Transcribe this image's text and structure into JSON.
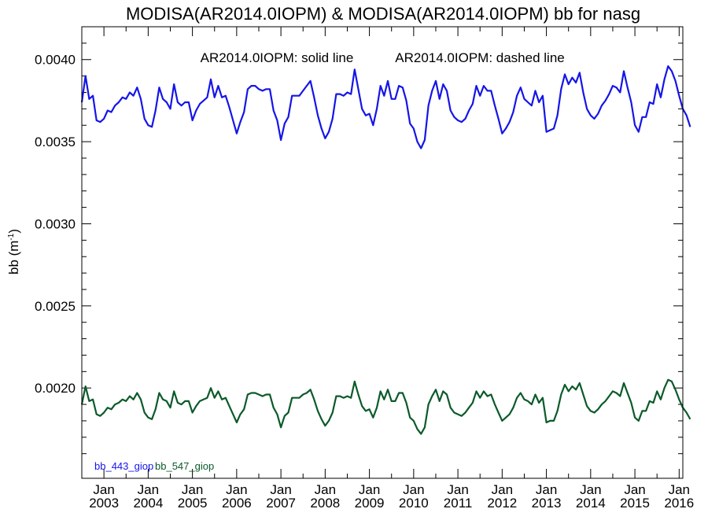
{
  "chart_data": {
    "type": "line",
    "title": "MODISA(AR2014.0IOPM) & MODISA(AR2014.0IOPM)  bb for nasg",
    "annotation_solid": "AR2014.0IOPM: solid line",
    "annotation_dashed": "AR2014.0IOPM: dashed line",
    "ylabel": "bb (m",
    "ylabel_sup": "-1",
    "ylabel_close": ")",
    "xlabel": "",
    "ylim": [
      0.00145,
      0.0042
    ],
    "yticks": [
      "0.0020",
      "0.0025",
      "0.0030",
      "0.0035",
      "0.0040"
    ],
    "xticks": [
      {
        "month": "Jan",
        "year": "2003"
      },
      {
        "month": "Jan",
        "year": "2004"
      },
      {
        "month": "Jan",
        "year": "2005"
      },
      {
        "month": "Jan",
        "year": "2006"
      },
      {
        "month": "Jan",
        "year": "2007"
      },
      {
        "month": "Jan",
        "year": "2008"
      },
      {
        "month": "Jan",
        "year": "2009"
      },
      {
        "month": "Jan",
        "year": "2010"
      },
      {
        "month": "Jan",
        "year": "2011"
      },
      {
        "month": "Jan",
        "year": "2012"
      },
      {
        "month": "Jan",
        "year": "2013"
      },
      {
        "month": "Jan",
        "year": "2014"
      },
      {
        "month": "Jan",
        "year": "2015"
      },
      {
        "month": "Jan",
        "year": "2016"
      }
    ],
    "grid": false,
    "series": [
      {
        "name": "bb_443_giop",
        "color": "#1515e8",
        "start": "2002-07",
        "values": [
          0.00374,
          0.0039,
          0.00376,
          0.00378,
          0.00363,
          0.00362,
          0.00364,
          0.00369,
          0.00368,
          0.00372,
          0.00374,
          0.00377,
          0.00376,
          0.0038,
          0.00378,
          0.00383,
          0.00376,
          0.00364,
          0.0036,
          0.00359,
          0.00369,
          0.00383,
          0.00376,
          0.00374,
          0.0037,
          0.00385,
          0.00374,
          0.00372,
          0.00374,
          0.00374,
          0.00363,
          0.00369,
          0.00373,
          0.00375,
          0.00377,
          0.00388,
          0.00377,
          0.00384,
          0.00377,
          0.00378,
          0.00371,
          0.00363,
          0.00355,
          0.00362,
          0.00368,
          0.00382,
          0.00384,
          0.00384,
          0.00382,
          0.00381,
          0.00382,
          0.00382,
          0.00369,
          0.00363,
          0.00351,
          0.00361,
          0.00365,
          0.00378,
          0.00378,
          0.00378,
          0.00381,
          0.00384,
          0.00387,
          0.00377,
          0.00366,
          0.00358,
          0.00352,
          0.00356,
          0.00364,
          0.00379,
          0.00379,
          0.00378,
          0.0038,
          0.00379,
          0.00394,
          0.00382,
          0.0037,
          0.00366,
          0.00367,
          0.0036,
          0.0037,
          0.00384,
          0.00378,
          0.00387,
          0.00376,
          0.00376,
          0.00384,
          0.00383,
          0.00375,
          0.00361,
          0.00358,
          0.0035,
          0.00346,
          0.00351,
          0.00372,
          0.00381,
          0.00387,
          0.00376,
          0.00385,
          0.00381,
          0.00369,
          0.00365,
          0.00363,
          0.00362,
          0.00364,
          0.00369,
          0.00373,
          0.00384,
          0.00378,
          0.00384,
          0.00381,
          0.00381,
          0.00372,
          0.00364,
          0.00355,
          0.00358,
          0.00362,
          0.00368,
          0.00378,
          0.00383,
          0.00376,
          0.00374,
          0.00372,
          0.00381,
          0.00374,
          0.00378,
          0.00356,
          0.00357,
          0.00358,
          0.00366,
          0.00382,
          0.00391,
          0.00385,
          0.00389,
          0.00386,
          0.00392,
          0.0038,
          0.0037,
          0.00366,
          0.00364,
          0.00367,
          0.00372,
          0.00375,
          0.00379,
          0.00384,
          0.00383,
          0.0038,
          0.00393,
          0.00383,
          0.00374,
          0.0036,
          0.00356,
          0.00365,
          0.00365,
          0.00374,
          0.00373,
          0.00385,
          0.00377,
          0.00388,
          0.00396,
          0.00393,
          0.00387,
          0.00378,
          0.0037,
          0.00366,
          0.00359
        ]
      },
      {
        "name": "bb_547_giop",
        "color": "#0b5a2a",
        "start": "2002-07",
        "values": [
          0.0019,
          0.00201,
          0.00192,
          0.00193,
          0.00184,
          0.00183,
          0.00185,
          0.00188,
          0.00187,
          0.0019,
          0.00191,
          0.00193,
          0.00192,
          0.00195,
          0.00193,
          0.00197,
          0.00193,
          0.00185,
          0.00182,
          0.00181,
          0.00187,
          0.00197,
          0.00193,
          0.00192,
          0.00188,
          0.00198,
          0.00191,
          0.0019,
          0.00192,
          0.00192,
          0.00185,
          0.00189,
          0.00192,
          0.00193,
          0.00194,
          0.002,
          0.00194,
          0.00198,
          0.00193,
          0.00194,
          0.00189,
          0.00184,
          0.00179,
          0.00184,
          0.00187,
          0.00196,
          0.00197,
          0.00197,
          0.00196,
          0.00195,
          0.00196,
          0.00196,
          0.00188,
          0.00184,
          0.00176,
          0.00183,
          0.00185,
          0.00194,
          0.00194,
          0.00194,
          0.00196,
          0.00197,
          0.00199,
          0.00193,
          0.00186,
          0.00181,
          0.00177,
          0.0018,
          0.00185,
          0.00195,
          0.00195,
          0.00194,
          0.00195,
          0.00194,
          0.00204,
          0.00196,
          0.00189,
          0.00186,
          0.00187,
          0.00182,
          0.00188,
          0.00198,
          0.00193,
          0.00199,
          0.00192,
          0.00192,
          0.00197,
          0.00197,
          0.00191,
          0.00182,
          0.0018,
          0.00175,
          0.00172,
          0.00176,
          0.0019,
          0.00195,
          0.00199,
          0.00192,
          0.00198,
          0.00196,
          0.00188,
          0.00185,
          0.00184,
          0.00183,
          0.00185,
          0.00188,
          0.00191,
          0.00198,
          0.00194,
          0.00198,
          0.00195,
          0.00196,
          0.0019,
          0.00185,
          0.0018,
          0.00182,
          0.00184,
          0.00188,
          0.00194,
          0.00197,
          0.00193,
          0.00192,
          0.0019,
          0.00196,
          0.00191,
          0.00194,
          0.00179,
          0.0018,
          0.0018,
          0.00186,
          0.00196,
          0.00202,
          0.00198,
          0.00201,
          0.00199,
          0.00203,
          0.00196,
          0.00189,
          0.00186,
          0.00185,
          0.00187,
          0.0019,
          0.00192,
          0.00195,
          0.00198,
          0.00197,
          0.00195,
          0.00203,
          0.00197,
          0.00191,
          0.00182,
          0.0018,
          0.00186,
          0.00186,
          0.00192,
          0.00191,
          0.00198,
          0.00193,
          0.002,
          0.00205,
          0.00204,
          0.00199,
          0.00193,
          0.00188,
          0.00185,
          0.00181
        ]
      }
    ]
  }
}
